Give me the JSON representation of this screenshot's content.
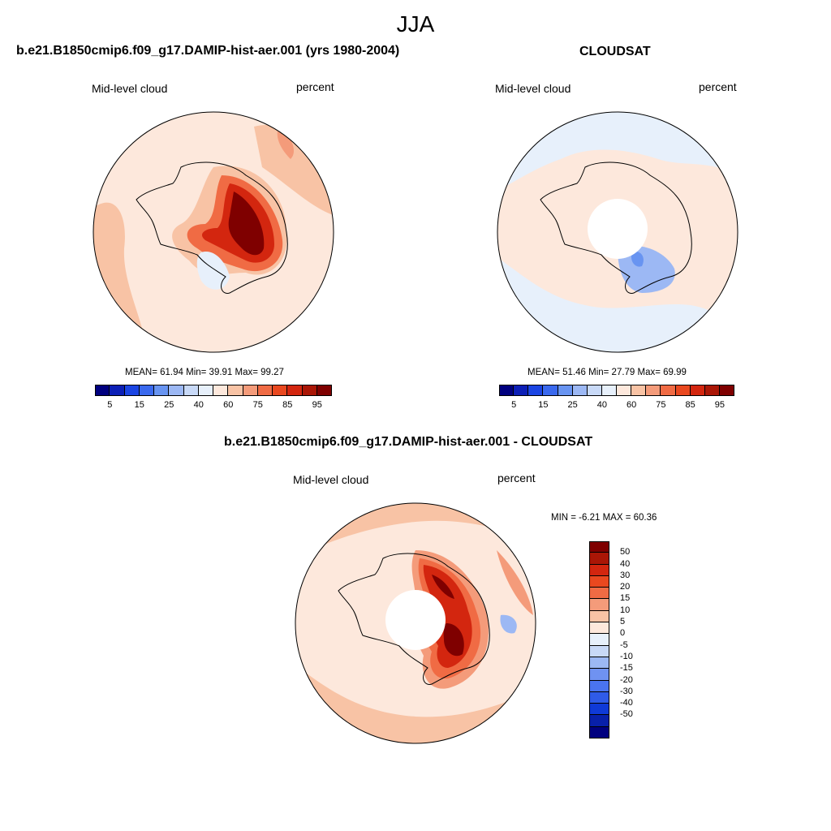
{
  "header": {
    "title": "JJA"
  },
  "colors": {
    "abs_scale": [
      "#00007f",
      "#0c1fb6",
      "#1b45e3",
      "#3a69ee",
      "#6894f1",
      "#9cb8f4",
      "#c8d9f7",
      "#e7f0fb",
      "#fde8dc",
      "#f8c3a5",
      "#f49b7a",
      "#f06b44",
      "#e9481f",
      "#d3260f",
      "#aa1606",
      "#7f0000"
    ],
    "diff_scale": [
      "#00007f",
      "#0820aa",
      "#0f3ad7",
      "#2f5be8",
      "#4a74ef",
      "#6f92f1",
      "#9cb8f4",
      "#c8d9f7",
      "#e7f0fb",
      "#fde8dc",
      "#f8c3a5",
      "#f49b7a",
      "#f06b44",
      "#e9481f",
      "#d3260f",
      "#aa1606",
      "#7f0000"
    ],
    "continent_outline": "#000000",
    "pole_hole": "#ffffff"
  },
  "panels": [
    {
      "title": "b.e21.B1850cmip6.f09_g17.DAMIP-hist-aer.001 (yrs 1980-2004)",
      "left_label": "Mid-level cloud",
      "right_label": "percent",
      "stats": "MEAN=  61.94  Min=  39.91  Max=  99.27",
      "colorbar_ticks": [
        "5",
        "15",
        "25",
        "40",
        "60",
        "75",
        "85",
        "95"
      ]
    },
    {
      "title": "CLOUDSAT",
      "left_label": "Mid-level cloud",
      "right_label": "percent",
      "stats": "MEAN=  51.46  Min=  27.79  Max=  69.99",
      "colorbar_ticks": [
        "5",
        "15",
        "25",
        "40",
        "60",
        "75",
        "85",
        "95"
      ]
    },
    {
      "title": "b.e21.B1850cmip6.f09_g17.DAMIP-hist-aer.001 - CLOUDSAT",
      "left_label": "Mid-level cloud",
      "right_label": "percent",
      "stats": "MIN =  -6.21 MAX =  60.36",
      "colorbar_ticks": [
        "50",
        "40",
        "30",
        "20",
        "15",
        "10",
        "5",
        "0",
        "-5",
        "-10",
        "-15",
        "-20",
        "-30",
        "-40",
        "-50"
      ]
    }
  ],
  "chart_data": [
    {
      "type": "heatmap",
      "projection": "south-polar-stereographic",
      "season": "JJA",
      "variable": "Mid-level cloud",
      "units": "percent",
      "mean": 61.94,
      "min": 39.91,
      "max": 99.27,
      "levels": [
        5,
        10,
        15,
        20,
        25,
        30,
        40,
        50,
        60,
        70,
        75,
        80,
        85,
        90,
        95
      ]
    },
    {
      "type": "heatmap",
      "projection": "south-polar-stereographic",
      "season": "JJA",
      "variable": "Mid-level cloud",
      "units": "percent",
      "mean": 51.46,
      "min": 27.79,
      "max": 69.99,
      "levels": [
        5,
        10,
        15,
        20,
        25,
        30,
        40,
        50,
        60,
        70,
        75,
        80,
        85,
        90,
        95
      ]
    },
    {
      "type": "heatmap",
      "projection": "south-polar-stereographic",
      "season": "JJA",
      "variable": "Mid-level cloud",
      "units": "percent",
      "min": -6.21,
      "max": 60.36,
      "levels": [
        -50,
        -40,
        -30,
        -20,
        -15,
        -10,
        -5,
        0,
        5,
        10,
        15,
        20,
        30,
        40,
        50
      ]
    }
  ]
}
